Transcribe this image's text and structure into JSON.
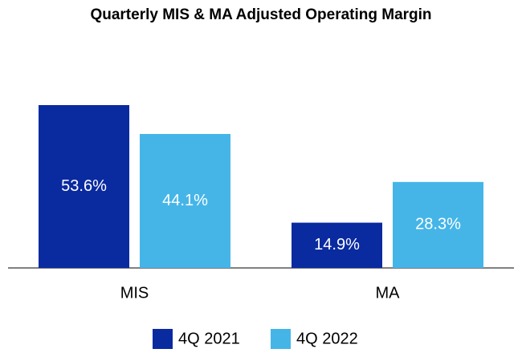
{
  "chart_data": {
    "type": "bar",
    "title": "Quarterly MIS & MA Adjusted Operating Margin",
    "categories": [
      "MIS",
      "MA"
    ],
    "series": [
      {
        "name": "4Q 2021",
        "color": "#0a2aa0",
        "values": [
          53.6,
          14.9
        ],
        "value_labels": [
          "53.6%",
          "14.9%"
        ]
      },
      {
        "name": "4Q 2022",
        "color": "#45b5e8",
        "values": [
          44.1,
          28.3
        ],
        "value_labels": [
          "44.1%",
          "28.3%"
        ]
      }
    ],
    "legend": "bottom"
  }
}
